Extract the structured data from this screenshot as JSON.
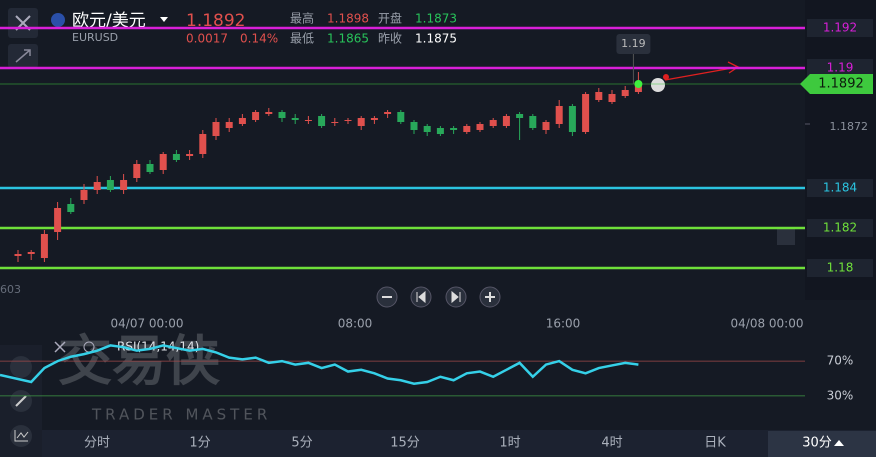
{
  "header": {
    "name": "欧元/美元",
    "symbol": "EURUSD",
    "price": "1.1892",
    "change": "0.0017",
    "change_pct": "0.14%",
    "stats": [
      {
        "label": "最高",
        "value": "1.1898"
      },
      {
        "label": "开盘",
        "value": "1.1873"
      },
      {
        "label": "最低",
        "value": "1.1865"
      },
      {
        "label": "昨收",
        "value": "1.1875"
      }
    ]
  },
  "chart_data": [
    {
      "type": "candlestick",
      "ylim": [
        1.1784,
        1.1934
      ],
      "up_color": "#e0504d",
      "down_color": "#28a85a",
      "open": [
        1.1806,
        1.1807,
        1.1805,
        1.1818,
        1.1832,
        1.1834,
        1.1839,
        1.1844,
        1.1839,
        1.1845,
        1.1852,
        1.1849,
        1.1857,
        1.1856,
        1.1857,
        1.1866,
        1.187,
        1.1872,
        1.1874,
        1.1877,
        1.1878,
        1.1875,
        1.1874,
        1.1876,
        1.1873,
        1.1874,
        1.1871,
        1.1874,
        1.1877,
        1.1878,
        1.1873,
        1.1871,
        1.187,
        1.187,
        1.1868,
        1.1869,
        1.1871,
        1.1871,
        1.1877,
        1.1876,
        1.1869,
        1.1872,
        1.1881,
        1.1868,
        1.1884,
        1.1883,
        1.1886,
        1.1888
      ],
      "high": [
        1.1809,
        1.1809,
        1.1819,
        1.1833,
        1.1835,
        1.1842,
        1.1846,
        1.1846,
        1.1847,
        1.1854,
        1.1854,
        1.1858,
        1.1859,
        1.1859,
        1.1869,
        1.1875,
        1.1875,
        1.1877,
        1.1879,
        1.188,
        1.1879,
        1.1877,
        1.1876,
        1.1877,
        1.1875,
        1.1875,
        1.1876,
        1.1876,
        1.1879,
        1.1879,
        1.1874,
        1.1872,
        1.1871,
        1.1871,
        1.1872,
        1.1873,
        1.1875,
        1.1877,
        1.1878,
        1.1877,
        1.1874,
        1.1884,
        1.1882,
        1.1888,
        1.189,
        1.1889,
        1.1891,
        1.1898
      ],
      "low": [
        1.1803,
        1.1804,
        1.1803,
        1.1814,
        1.1827,
        1.1832,
        1.1837,
        1.1838,
        1.1837,
        1.1843,
        1.1847,
        1.1847,
        1.1853,
        1.1854,
        1.1855,
        1.1864,
        1.1868,
        1.1871,
        1.1873,
        1.1876,
        1.1873,
        1.1872,
        1.1872,
        1.187,
        1.1871,
        1.1872,
        1.1869,
        1.1872,
        1.1875,
        1.1872,
        1.1867,
        1.1866,
        1.1866,
        1.1867,
        1.1867,
        1.1868,
        1.187,
        1.187,
        1.1864,
        1.1869,
        1.1867,
        1.187,
        1.1866,
        1.1867,
        1.1883,
        1.1882,
        1.1885,
        1.1887
      ],
      "close": [
        1.1807,
        1.1808,
        1.1817,
        1.183,
        1.1828,
        1.1839,
        1.1843,
        1.1839,
        1.1844,
        1.1852,
        1.1848,
        1.1857,
        1.1854,
        1.1857,
        1.1867,
        1.1873,
        1.1873,
        1.1875,
        1.1878,
        1.1878,
        1.1875,
        1.1874,
        1.1874,
        1.1871,
        1.1873,
        1.1874,
        1.1875,
        1.1875,
        1.1878,
        1.1873,
        1.1869,
        1.1868,
        1.1867,
        1.1869,
        1.1871,
        1.1872,
        1.1874,
        1.1876,
        1.1875,
        1.187,
        1.1873,
        1.1881,
        1.1868,
        1.1887,
        1.1888,
        1.1887,
        1.1889,
        1.1892
      ],
      "levels": [
        {
          "value": 1.192,
          "color": "#d81fd8"
        },
        {
          "value": 1.19,
          "color": "#d81fd8"
        },
        {
          "value": 1.184,
          "color": "#2bc4e0"
        },
        {
          "value": 1.182,
          "color": "#6fe03a"
        },
        {
          "value": 1.18,
          "color": "#6fe03a"
        }
      ],
      "yticks": [
        1.1872
      ],
      "last": 1.1892,
      "bubble": "1.19",
      "partial_label": "603",
      "xticks": [
        "04/07 00:00",
        "08:00",
        "16:00",
        "04/08 00:00"
      ]
    },
    {
      "type": "line",
      "title": "RSI(14,14,14)",
      "color": "#35d0e8",
      "ylim": [
        0,
        100
      ],
      "yticks": [
        {
          "value": 70,
          "label": "70%"
        },
        {
          "value": 30,
          "label": "30%"
        }
      ],
      "values": [
        54,
        46,
        62,
        70,
        75,
        78,
        82,
        88,
        86,
        82,
        84,
        88,
        85,
        82,
        84,
        80,
        74,
        72,
        74,
        68,
        70,
        66,
        68,
        62,
        66,
        58,
        60,
        56,
        50,
        48,
        44,
        46,
        52,
        48,
        56,
        58,
        52,
        60,
        68,
        52,
        66,
        70,
        60,
        56,
        62,
        65,
        68,
        66
      ]
    }
  ],
  "watermark": {
    "title": "交易侠",
    "subtitle": "TRADER MASTER"
  },
  "tabs": [
    "分时",
    "1分",
    "5分",
    "15分",
    "1时",
    "4时",
    "日K",
    "30分"
  ]
}
